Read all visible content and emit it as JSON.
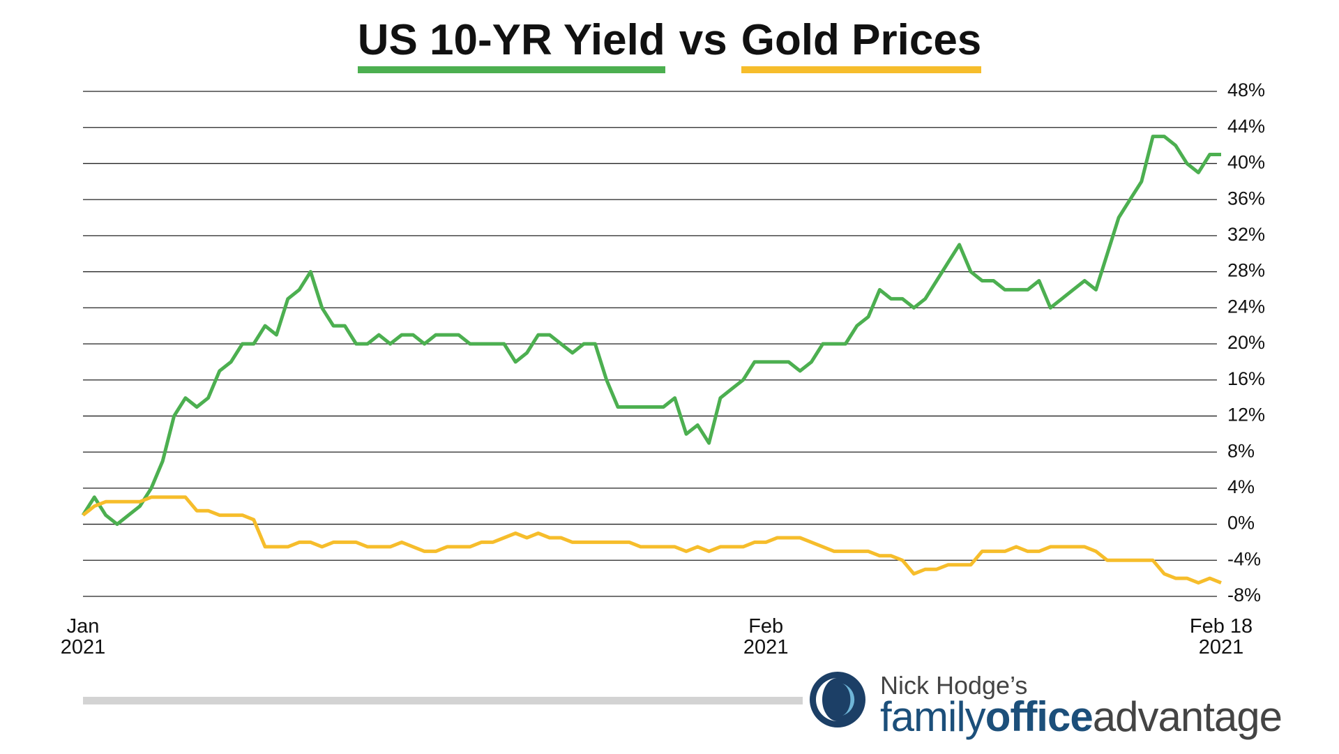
{
  "chart_data": {
    "type": "line",
    "title": [
      "US 10-YR Yield",
      "vs",
      "Gold Prices"
    ],
    "categories": [
      "Jan\n2021",
      null,
      null,
      null,
      null,
      null,
      null,
      null,
      null,
      null,
      null,
      null,
      null,
      null,
      null,
      null,
      null,
      null,
      null,
      null,
      null,
      null,
      null,
      null,
      null,
      null,
      null,
      null,
      null,
      null,
      null,
      null,
      null,
      null,
      null,
      null,
      null,
      null,
      null,
      null,
      null,
      null,
      null,
      null,
      null,
      null,
      null,
      null,
      null,
      null,
      null,
      null,
      null,
      null,
      null,
      null,
      null,
      null,
      null,
      null,
      "Feb\n2021",
      null,
      null,
      null,
      null,
      null,
      null,
      null,
      null,
      null,
      null,
      null,
      null,
      null,
      null,
      null,
      null,
      null,
      null,
      null,
      null,
      null,
      null,
      null,
      null,
      null,
      null,
      null,
      null,
      null,
      null,
      null,
      null,
      null,
      null,
      null,
      null,
      null,
      null,
      null,
      "Feb 18\n2021"
    ],
    "series": [
      {
        "color": "#4caf50",
        "values": [
          1,
          3,
          1,
          0,
          1,
          2,
          4,
          7,
          12,
          14,
          13,
          14,
          17,
          18,
          20,
          20,
          22,
          21,
          25,
          26,
          28,
          24,
          22,
          22,
          20,
          20,
          21,
          20,
          21,
          21,
          20,
          21,
          21,
          21,
          20,
          20,
          20,
          20,
          18,
          19,
          21,
          21,
          20,
          19,
          20,
          20,
          16,
          13,
          13,
          13,
          13,
          13,
          14,
          10,
          11,
          9,
          14,
          15,
          16,
          18,
          18,
          18,
          18,
          17,
          18,
          20,
          20,
          20,
          22,
          23,
          26,
          25,
          25,
          24,
          25,
          27,
          29,
          31,
          28,
          27,
          27,
          26,
          26,
          26,
          27,
          24,
          25,
          26,
          27,
          26,
          30,
          34,
          36,
          38,
          43,
          43,
          42,
          40,
          39,
          41,
          41
        ]
      },
      {
        "color": "#f6bd2b",
        "values": [
          1,
          2,
          2.5,
          2.5,
          2.5,
          2.5,
          3,
          3,
          3,
          3,
          1.5,
          1.5,
          1,
          1,
          1,
          0.5,
          -2.5,
          -2.5,
          -2.5,
          -2,
          -2,
          -2.5,
          -2,
          -2,
          -2,
          -2.5,
          -2.5,
          -2.5,
          -2,
          -2.5,
          -3,
          -3,
          -2.5,
          -2.5,
          -2.5,
          -2,
          -2,
          -1.5,
          -1,
          -1.5,
          -1,
          -1.5,
          -1.5,
          -2,
          -2,
          -2,
          -2,
          -2,
          -2,
          -2.5,
          -2.5,
          -2.5,
          -2.5,
          -3,
          -2.5,
          -3,
          -2.5,
          -2.5,
          -2.5,
          -2,
          -2,
          -1.5,
          -1.5,
          -1.5,
          -2,
          -2.5,
          -3,
          -3,
          -3,
          -3,
          -3.5,
          -3.5,
          -4,
          -5.5,
          -5,
          -5,
          -4.5,
          -4.5,
          -4.5,
          -3,
          -3,
          -3,
          -2.5,
          -3,
          -3,
          -2.5,
          -2.5,
          -2.5,
          -2.5,
          -3,
          -4,
          -4,
          -4,
          -4,
          -4,
          -5.5,
          -6,
          -6,
          -6.5,
          -6,
          -6.5
        ]
      }
    ],
    "ylim": [
      -8,
      48
    ],
    "yticks": [
      {
        "value": -8,
        "label": "-8%"
      },
      {
        "value": -4,
        "label": "-4%"
      },
      {
        "value": 0,
        "label": "0%"
      },
      {
        "value": 4,
        "label": "4%"
      },
      {
        "value": 8,
        "label": "8%"
      },
      {
        "value": 12,
        "label": "12%"
      },
      {
        "value": 16,
        "label": "16%"
      },
      {
        "value": 20,
        "label": "20%"
      },
      {
        "value": 24,
        "label": "24%"
      },
      {
        "value": 28,
        "label": "28%"
      },
      {
        "value": 32,
        "label": "32%"
      },
      {
        "value": 36,
        "label": "36%"
      },
      {
        "value": 40,
        "label": "40%"
      },
      {
        "value": 44,
        "label": "44%"
      },
      {
        "value": 48,
        "label": "48%"
      }
    ],
    "grid": true
  },
  "logo": {
    "line1": "Nick Hodge’s",
    "parts": [
      "family",
      "office",
      "advantage"
    ]
  }
}
